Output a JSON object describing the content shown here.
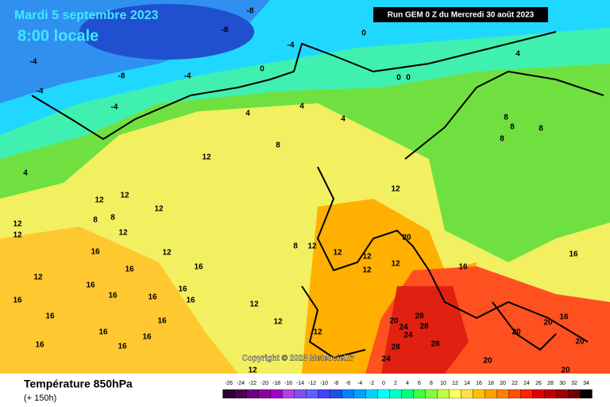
{
  "header": {
    "date": "Mardi 5 septembre 2023",
    "time": "8:00 locale",
    "run": "Run GEM 0 Z du Mercredi 30 août 2023"
  },
  "map": {
    "copyright": "Copyright © 2023 Meteociel.fr",
    "contour_labels": [
      -8,
      -8,
      -8,
      -4,
      -4,
      -4,
      -4,
      -4,
      0,
      0,
      0,
      0,
      4,
      4,
      4,
      4,
      4,
      8,
      8,
      8,
      8,
      8,
      12,
      12,
      12,
      12,
      12,
      12,
      12,
      12,
      12,
      12,
      12,
      12,
      12,
      12,
      12,
      12,
      12,
      12,
      12,
      16,
      16,
      16,
      16,
      16,
      16,
      16,
      16,
      16,
      16,
      16,
      16,
      16,
      16,
      16,
      16,
      16,
      16,
      20,
      20,
      20,
      20,
      20,
      20,
      20,
      24,
      24,
      24,
      28,
      28,
      28,
      28,
      8,
      8,
      8
    ]
  },
  "footer": {
    "title": "Température 850hPa",
    "subtitle": "(+ 150h)"
  },
  "scale": {
    "ticks": [
      -26,
      -24,
      -22,
      -20,
      -18,
      -16,
      -14,
      -12,
      -10,
      -8,
      -6,
      -4,
      -2,
      0,
      2,
      4,
      6,
      8,
      10,
      12,
      14,
      16,
      18,
      20,
      22,
      24,
      26,
      28,
      30,
      32,
      34
    ],
    "colors": [
      "#2a0030",
      "#4b0050",
      "#6a0080",
      "#8a00a0",
      "#a000c8",
      "#b040e0",
      "#8050f0",
      "#6060ff",
      "#4040ff",
      "#2050e0",
      "#0080ff",
      "#00a0ff",
      "#00d0ff",
      "#00ffff",
      "#00ffc0",
      "#00ff80",
      "#40ff40",
      "#80ff40",
      "#c0ff40",
      "#ffff60",
      "#ffe040",
      "#ffc000",
      "#ffa000",
      "#ff8000",
      "#ff5000",
      "#ff2000",
      "#e00000",
      "#c00000",
      "#a00000",
      "#700000",
      "#000000"
    ]
  }
}
